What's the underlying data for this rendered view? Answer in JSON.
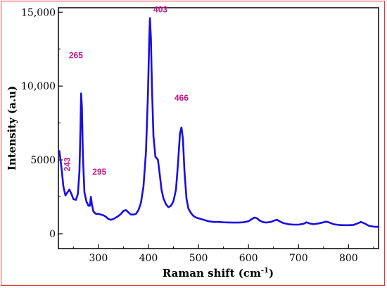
{
  "chart_data": {
    "type": "line",
    "xlabel": "Raman shift (cm",
    "xlabel_sup": "-1",
    "xlabel_close": ")",
    "ylabel": "Intensity (a.u)",
    "xlim": [
      220,
      860
    ],
    "ylim": [
      -1000,
      15300
    ],
    "x_ticks": [
      300,
      400,
      500,
      600,
      700,
      800
    ],
    "y_ticks": [
      0,
      5000,
      10000,
      15000
    ],
    "y_tick_labels": [
      "0",
      "5000",
      "10,000",
      "15,000"
    ],
    "grid": false,
    "series": [
      {
        "color": "#1a0ee0",
        "points": [
          [
            222,
            5600
          ],
          [
            226,
            4500
          ],
          [
            230,
            3200
          ],
          [
            234,
            2600
          ],
          [
            238,
            2800
          ],
          [
            242,
            3000
          ],
          [
            246,
            2700
          ],
          [
            250,
            2350
          ],
          [
            255,
            2300
          ],
          [
            259,
            2700
          ],
          [
            262,
            4200
          ],
          [
            264,
            7000
          ],
          [
            265.5,
            9500
          ],
          [
            267,
            8600
          ],
          [
            269,
            5300
          ],
          [
            272,
            2800
          ],
          [
            276,
            2200
          ],
          [
            280,
            1900
          ],
          [
            283,
            1900
          ],
          [
            285,
            2500
          ],
          [
            287,
            2000
          ],
          [
            290,
            1500
          ],
          [
            295,
            1350
          ],
          [
            300,
            1350
          ],
          [
            305,
            1300
          ],
          [
            310,
            1250
          ],
          [
            315,
            1150
          ],
          [
            320,
            1000
          ],
          [
            325,
            950
          ],
          [
            330,
            1000
          ],
          [
            335,
            1100
          ],
          [
            340,
            1200
          ],
          [
            345,
            1350
          ],
          [
            350,
            1550
          ],
          [
            355,
            1600
          ],
          [
            360,
            1450
          ],
          [
            365,
            1300
          ],
          [
            370,
            1300
          ],
          [
            375,
            1350
          ],
          [
            380,
            1600
          ],
          [
            385,
            2100
          ],
          [
            390,
            3200
          ],
          [
            395,
            5500
          ],
          [
            399,
            9500
          ],
          [
            401.5,
            13000
          ],
          [
            403,
            14600
          ],
          [
            405,
            13200
          ],
          [
            407,
            10000
          ],
          [
            410,
            6600
          ],
          [
            414,
            5200
          ],
          [
            417,
            5100
          ],
          [
            419,
            5000
          ],
          [
            422,
            4200
          ],
          [
            426,
            3000
          ],
          [
            430,
            2400
          ],
          [
            435,
            2000
          ],
          [
            440,
            1800
          ],
          [
            445,
            1900
          ],
          [
            450,
            2200
          ],
          [
            455,
            3000
          ],
          [
            459,
            4700
          ],
          [
            463,
            6800
          ],
          [
            466,
            7200
          ],
          [
            469,
            6400
          ],
          [
            472,
            4200
          ],
          [
            476,
            2400
          ],
          [
            480,
            1700
          ],
          [
            485,
            1400
          ],
          [
            490,
            1200
          ],
          [
            495,
            1100
          ],
          [
            500,
            1050
          ],
          [
            505,
            1000
          ],
          [
            510,
            950
          ],
          [
            520,
            850
          ],
          [
            530,
            800
          ],
          [
            540,
            800
          ],
          [
            550,
            780
          ],
          [
            560,
            770
          ],
          [
            570,
            760
          ],
          [
            580,
            760
          ],
          [
            590,
            780
          ],
          [
            600,
            850
          ],
          [
            607,
            1000
          ],
          [
            612,
            1100
          ],
          [
            617,
            1050
          ],
          [
            622,
            900
          ],
          [
            628,
            800
          ],
          [
            635,
            760
          ],
          [
            645,
            800
          ],
          [
            652,
            900
          ],
          [
            657,
            950
          ],
          [
            662,
            850
          ],
          [
            670,
            720
          ],
          [
            680,
            650
          ],
          [
            690,
            620
          ],
          [
            700,
            620
          ],
          [
            710,
            680
          ],
          [
            716,
            780
          ],
          [
            722,
            700
          ],
          [
            730,
            650
          ],
          [
            740,
            700
          ],
          [
            750,
            780
          ],
          [
            756,
            820
          ],
          [
            762,
            760
          ],
          [
            770,
            650
          ],
          [
            780,
            600
          ],
          [
            790,
            580
          ],
          [
            800,
            580
          ],
          [
            810,
            600
          ],
          [
            818,
            700
          ],
          [
            825,
            800
          ],
          [
            832,
            700
          ],
          [
            840,
            550
          ],
          [
            850,
            480
          ],
          [
            860,
            470
          ]
        ]
      }
    ],
    "annotations": [
      {
        "text": "243",
        "x": 243,
        "y": 4700,
        "rotate": -90
      },
      {
        "text": "265",
        "x": 255,
        "y": 11900
      },
      {
        "text": "295",
        "x": 302,
        "y": 4000
      },
      {
        "text": "403",
        "x": 424,
        "y": 15000
      },
      {
        "text": "466",
        "x": 466,
        "y": 9000
      }
    ]
  }
}
